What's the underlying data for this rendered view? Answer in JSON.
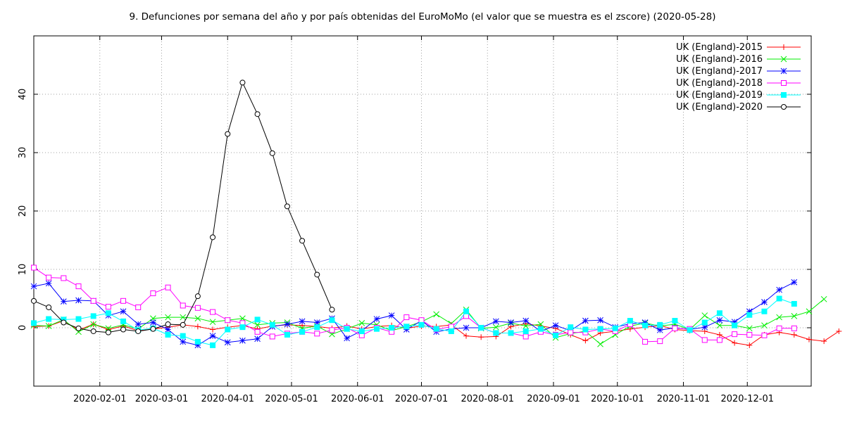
{
  "chart_data": {
    "type": "line",
    "title": "9. Defunciones por semana del año y por país obtenidas del EuroMoMo (el valor que se muestra es el zscore) (2020-05-28)",
    "xlabel": "",
    "ylabel": "",
    "x_axis": {
      "type": "date",
      "range": [
        "2020-01-01",
        "2020-12-31"
      ],
      "ticks": [
        "2020-02-01",
        "2020-03-01",
        "2020-04-01",
        "2020-05-01",
        "2020-06-01",
        "2020-07-01",
        "2020-08-01",
        "2020-09-01",
        "2020-10-01",
        "2020-11-01",
        "2020-12-01"
      ]
    },
    "y_axis": {
      "range": [
        -10,
        50
      ],
      "ticks": [
        0,
        10,
        20,
        30,
        40
      ]
    },
    "grid": true,
    "legend_position": "top-right",
    "series": [
      {
        "name": "UK (England)-2015",
        "color": "#ff0000",
        "marker": "plus",
        "values": [
          0.2,
          0.3,
          1.2,
          -0.4,
          0.6,
          -0.3,
          0.3,
          -0.5,
          -0.2,
          0.1,
          0.5,
          0.2,
          -0.3,
          0.1,
          0.4,
          -0.2,
          0.3,
          0.5,
          0.4,
          0.2,
          -0.1,
          0.3,
          -0.2,
          0.2,
          0.4,
          -0.1,
          0.3,
          0.2,
          0.5,
          -1.4,
          -1.6,
          -1.5,
          0.2,
          0.7,
          0.3,
          -0.1,
          -1.2,
          -2.2,
          -0.9,
          -0.6,
          -0.2,
          0.1,
          0.4,
          -0.3,
          -0.5,
          -0.6,
          -1.2,
          -2.6,
          -3.0,
          -1.2,
          -0.8,
          -1.2,
          -2.0,
          -2.3,
          -0.6
        ]
      },
      {
        "name": "UK (England)-2016",
        "color": "#00ee00",
        "marker": "cross",
        "values": [
          0.4,
          0.3,
          1.4,
          -0.7,
          0.6,
          -0.1,
          0.5,
          -0.2,
          1.6,
          1.8,
          1.8,
          1.6,
          1.0,
          1.3,
          1.6,
          0.5,
          0.8,
          0.9,
          -0.1,
          0.3,
          -1.1,
          -0.2,
          0.8,
          0.5,
          -0.5,
          0.2,
          1.0,
          2.3,
          0.7,
          3.1,
          -0.1,
          0.1,
          0.8,
          0.3,
          0.6,
          -1.7,
          -1.0,
          -0.6,
          -2.8,
          -1.2,
          0.3,
          0.8,
          0.3,
          0.6,
          -0.3,
          2.1,
          0.4,
          0.4,
          -0.1,
          0.4,
          1.8,
          2.0,
          2.8,
          4.9
        ]
      },
      {
        "name": "UK (England)-2017",
        "color": "#0000ff",
        "marker": "star",
        "values": [
          7.1,
          7.6,
          4.5,
          4.7,
          4.6,
          2.1,
          2.8,
          0.6,
          0.9,
          -0.3,
          -2.4,
          -3.0,
          -1.4,
          -2.5,
          -2.2,
          -1.9,
          0.2,
          0.6,
          1.1,
          0.9,
          1.6,
          -1.8,
          -0.5,
          1.5,
          2.1,
          -0.3,
          1.2,
          -0.7,
          -0.2,
          0.0,
          0.0,
          1.1,
          0.9,
          1.2,
          -0.6,
          0.4,
          -0.5,
          1.2,
          1.3,
          0.1,
          0.7,
          0.9,
          -0.4,
          0.0,
          -0.3,
          0.1,
          1.3,
          1.0,
          2.8,
          4.4,
          6.5,
          7.8
        ]
      },
      {
        "name": "UK (England)-2018",
        "color": "#ff00ff",
        "marker": "square-open",
        "values": [
          10.3,
          8.6,
          8.5,
          7.1,
          4.6,
          3.6,
          4.6,
          3.5,
          5.9,
          6.9,
          3.8,
          3.4,
          2.7,
          1.3,
          0.8,
          -0.7,
          -1.5,
          -1.0,
          -0.7,
          -1.0,
          -0.4,
          0.0,
          -1.3,
          0.0,
          -0.7,
          1.8,
          1.3,
          -0.3,
          0.2,
          2.0,
          0.0,
          -0.9,
          -0.9,
          -1.5,
          -0.7,
          -1.2,
          -0.8,
          -0.8,
          -0.2,
          -0.6,
          0.6,
          -2.4,
          -2.3,
          -0.1,
          -0.2,
          -2.1,
          -2.1,
          -1.1,
          -1.2,
          -1.3,
          -0.1,
          -0.1
        ]
      },
      {
        "name": "UK (England)-2019",
        "color": "#00ffff",
        "marker": "square-filled",
        "values": [
          0.8,
          1.5,
          1.4,
          1.5,
          2.0,
          2.5,
          1.1,
          -0.4,
          -0.1,
          -1.2,
          -1.4,
          -2.4,
          -3.0,
          -0.3,
          0.1,
          1.4,
          0.5,
          -1.2,
          -0.7,
          0.1,
          1.3,
          -0.2,
          -0.6,
          -0.2,
          0.0,
          0.2,
          0.5,
          -0.2,
          -0.6,
          2.8,
          0.0,
          -0.9,
          -0.9,
          -0.6,
          -0.2,
          -1.3,
          0.1,
          -0.3,
          -0.2,
          -0.1,
          1.2,
          0.4,
          0.5,
          1.2,
          -0.4,
          0.9,
          2.5,
          0.4,
          2.2,
          2.8,
          5.0,
          4.1
        ]
      },
      {
        "name": "UK (England)-2020",
        "color": "#000000",
        "marker": "circle-open",
        "values": [
          4.6,
          3.5,
          0.9,
          -0.1,
          -0.6,
          -0.8,
          -0.3,
          -0.6,
          -0.2,
          0.6,
          0.5,
          5.4,
          15.5,
          33.2,
          42.0,
          36.6,
          29.9,
          20.8,
          14.9,
          9.1,
          3.1
        ]
      }
    ]
  }
}
